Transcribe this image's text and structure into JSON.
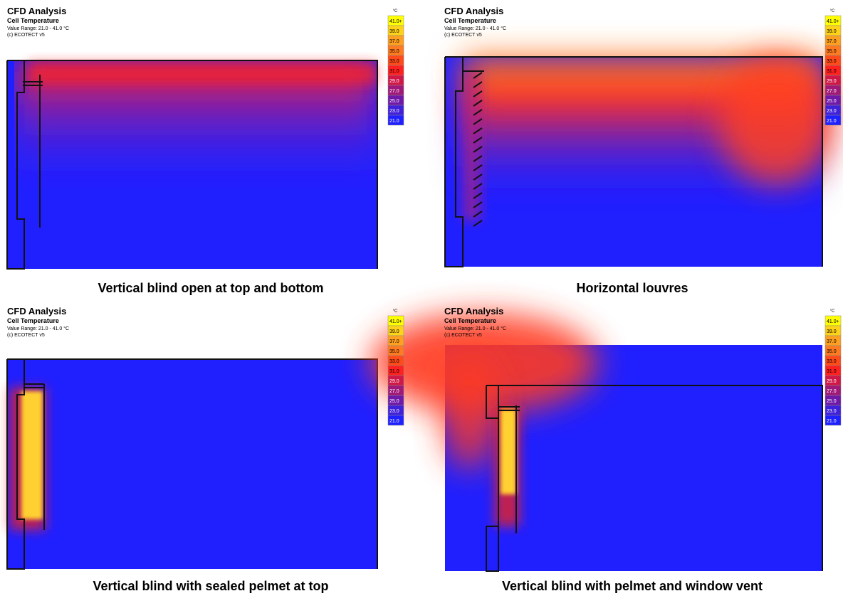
{
  "panels": [
    {
      "title": "CFD Analysis",
      "subtitle": "Cell Temperature",
      "range": "Value Range: 21.0 - 41.0 °C",
      "credit": "(c) ECOTECT v5",
      "unit": "°C",
      "legend": [
        "41.0+",
        "39.0",
        "37.0",
        "35.0",
        "33.0",
        "31.0",
        "29.0",
        "27.0",
        "25.0",
        "23.0",
        "21.0"
      ],
      "caption": "Vertical blind open at top and bottom"
    },
    {
      "title": "CFD Analysis",
      "subtitle": "Cell Temperature",
      "range": "Value Range: 21.0 - 41.0 °C",
      "credit": "(c) ECOTECT v5",
      "unit": "°C",
      "legend": [
        "41.0+",
        "39.0",
        "37.0",
        "35.0",
        "33.0",
        "31.0",
        "29.0",
        "27.0",
        "25.0",
        "23.0",
        "21.0"
      ],
      "caption": "Horizontal louvres"
    },
    {
      "title": "CFD Analysis",
      "subtitle": "Cell Temperature",
      "range": "Value Range: 21.0 - 41.0 °C",
      "credit": "(c) ECOTECT v5",
      "unit": "°C",
      "legend": [
        "41.0+",
        "39.0",
        "37.0",
        "35.0",
        "33.0",
        "31.0",
        "29.0",
        "27.0",
        "25.0",
        "23.0",
        "21.0"
      ],
      "caption": "Vertical blind with sealed pelmet at top"
    },
    {
      "title": "CFD Analysis",
      "subtitle": "Cell Temperature",
      "range": "Value Range: 21.0 - 41.0 °C",
      "credit": "(c) ECOTECT v5",
      "unit": "°C",
      "legend": [
        "41.0+",
        "39.0",
        "37.0",
        "35.0",
        "33.0",
        "31.0",
        "29.0",
        "27.0",
        "25.0",
        "23.0",
        "21.0"
      ],
      "caption": "Vertical blind with pelmet and window vent"
    }
  ]
}
